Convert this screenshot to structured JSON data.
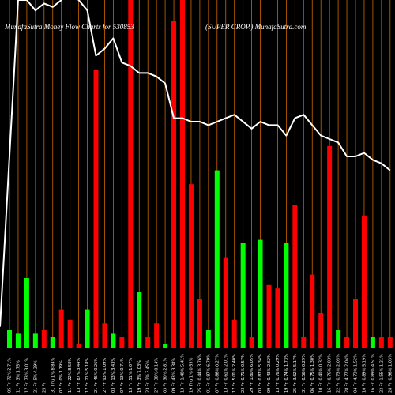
{
  "chart_data": {
    "type": "bar",
    "title_left": "MunafaSutra  Money Flow  Charts for 530853",
    "title_right": "(SUPER CROP.) MunafaSutra.com",
    "colors": {
      "background": "#000000",
      "up": "#00ff00",
      "down": "#ff0000",
      "grid": "#cc6600",
      "line": "#ffffff"
    },
    "ylim": [
      0,
      100
    ],
    "categories": [
      "05 Fri 72% 2.71%",
      "11 Fri 3% 1.75%",
      "17 Fri 73% 3.01%",
      "21 Fri 5% 4.29%",
      "25 Fri",
      "31 Thu 1% 8.84%",
      "07 Fri 0% 1.19%",
      "11 Fri 22% 8.58%",
      "13 Fri 87% 3.44%",
      "17 Fri 21% 5.18%",
      "21 Fri 46% 0.26%",
      "27 Fri 93% 1.09%",
      "03 Fri 13% 3.43%",
      "07 Fri 13% 0.71%",
      "13 Fri 51% 1.07%",
      "19 Fri 3% 7.03%",
      "23 Fri 1% 3.45%",
      "27 Fri 38% 0.14%",
      "03 Fri 30% 2.81%",
      "09 Fri 43% 3.38%",
      "13 Fri 1.48% 5.41%",
      "19 Thu 1% 0.55%",
      "25 Fri 0.44% 3.76%",
      "01 Fri 0.87% 6.79%",
      "07 Fri 0.86% 0.27%",
      "13 Fri 0.61% 2.01%",
      "17 Fri 5.01% 2.40%",
      "23 Fri 0.71% 0.57%",
      "29 Fri 1.80% 6.05%",
      "03 Fri 0.87% 5.34%",
      "09 Fri 0.43% 2.62%",
      "13 Fri 0.76% 0.29%",
      "19 Fri 0.74% 1.73%",
      "25 Fri 3.62% 5.17%",
      "31 Fri 0.56% 0.29%",
      "06 Fri 0.75% 1.30%",
      "10 Fri 0.40% 0.32%",
      "16 Fri 0.76% 2.03%",
      "22 Fri 0.73% 2.05%",
      "28 Fri 4.77% 2.04%",
      "04 Fri 4.73% 1.52%",
      "10 Fri 0.89% 5.19%",
      "16 Fri 0.89% 4.51%",
      "22 Fri 1.55% 1.21%",
      "28 Fri 0.96% 1.03%"
    ],
    "series": [
      {
        "values": [
          5,
          4,
          20,
          4,
          5,
          3,
          11,
          8,
          1,
          11,
          80,
          7,
          4,
          3,
          100,
          16,
          3,
          7,
          1,
          94,
          100,
          47,
          14,
          5,
          51,
          26,
          8,
          30,
          3,
          31,
          18,
          17,
          30,
          41,
          3,
          21,
          10,
          58,
          5,
          3,
          14,
          38,
          3,
          3,
          3
        ],
        "colors": [
          "up",
          "up",
          "up",
          "up",
          "down",
          "up",
          "down",
          "down",
          "down",
          "up",
          "down",
          "down",
          "up",
          "down",
          "down",
          "up",
          "down",
          "down",
          "up",
          "down",
          "down",
          "down",
          "down",
          "up",
          "up",
          "down",
          "down",
          "up",
          "down",
          "up",
          "down",
          "down",
          "up",
          "down",
          "down",
          "down",
          "down",
          "down",
          "up",
          "down",
          "down",
          "down",
          "up",
          "down",
          "down"
        ]
      },
      {
        "type": "line",
        "values": [
          6,
          100,
          100,
          97,
          99,
          98,
          100,
          102,
          100,
          97,
          84,
          86,
          89,
          82,
          81,
          79,
          79,
          78,
          76,
          66,
          66,
          65,
          65,
          64,
          65,
          66,
          67,
          65,
          63,
          65,
          64,
          64,
          61,
          66,
          67,
          64,
          61,
          60,
          59,
          55,
          55,
          56,
          54,
          53,
          51
        ]
      }
    ]
  }
}
